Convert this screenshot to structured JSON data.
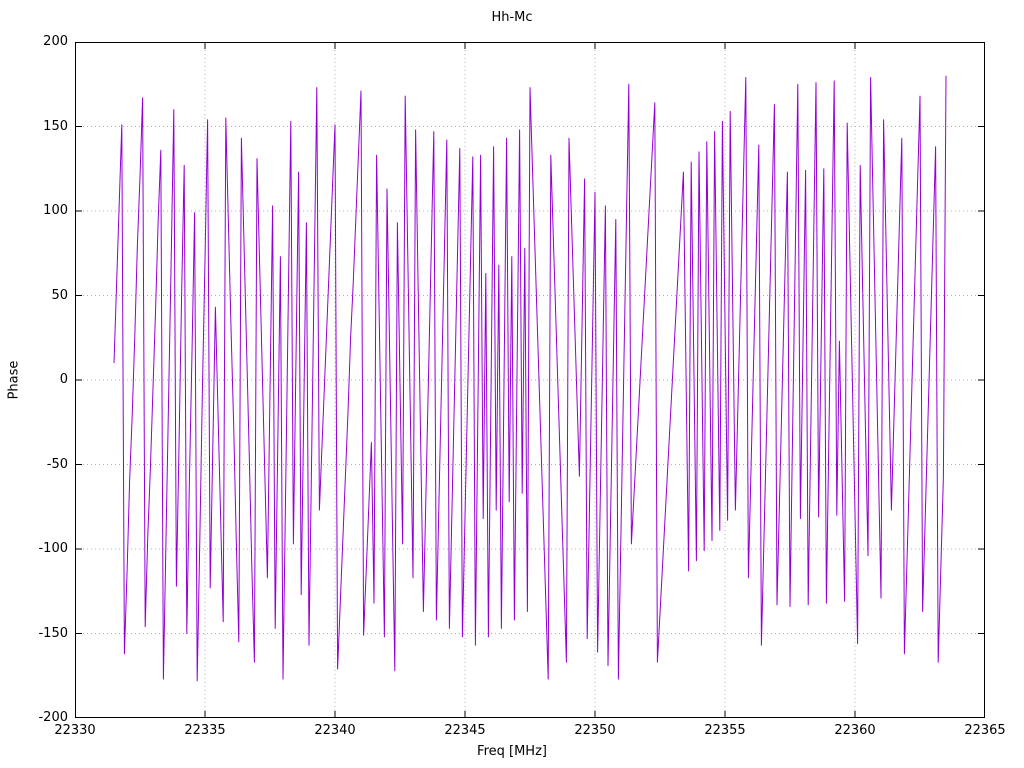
{
  "chart_data": {
    "type": "line",
    "title": "Hh-Mc",
    "xlabel": "Freq [MHz]",
    "ylabel": "Phase",
    "xlim": [
      22330,
      22365
    ],
    "ylim": [
      -200,
      200
    ],
    "xticks": [
      22330,
      22335,
      22340,
      22345,
      22350,
      22355,
      22360,
      22365
    ],
    "yticks": [
      -200,
      -150,
      -100,
      -50,
      0,
      50,
      100,
      150,
      200
    ],
    "grid": "dotted",
    "legend": "none",
    "line_color": "#9400D3",
    "grid_color": "#b0b0b0",
    "border_color": "#000000",
    "series": [
      {
        "name": "Hh-Mc phase",
        "x_start": 22331.5,
        "x_step": 0.1,
        "values": [
          10,
          57,
          104,
          151,
          -162,
          -115,
          -60,
          -21,
          26,
          80,
          120,
          167,
          -146,
          -92,
          -52,
          -5,
          42,
          95,
          136,
          -177,
          -94,
          -11,
          72,
          160,
          -122,
          -39,
          50,
          127,
          -150,
          -60,
          16,
          99,
          -178,
          -95,
          -6,
          71,
          154,
          -123,
          -40,
          43,
          -19,
          -81,
          -143,
          155,
          93,
          31,
          -25,
          -93,
          -155,
          143,
          81,
          19,
          -43,
          -110,
          -167,
          131,
          69,
          7,
          -55,
          -117,
          -7,
          103,
          -147,
          -37,
          73,
          -177,
          -67,
          43,
          153,
          -97,
          13,
          123,
          -127,
          -17,
          93,
          -157,
          -47,
          63,
          173,
          -77,
          -39,
          -1,
          37,
          75,
          113,
          151,
          -171,
          -133,
          -95,
          -57,
          -19,
          25,
          57,
          95,
          133,
          171,
          -151,
          -113,
          -75,
          -37,
          -132,
          133,
          38,
          -57,
          -152,
          113,
          18,
          -77,
          -172,
          93,
          -2,
          -97,
          168,
          73,
          -22,
          -117,
          148,
          53,
          -42,
          -137,
          -66,
          5,
          76,
          147,
          -142,
          -71,
          0,
          71,
          142,
          -147,
          -76,
          -5,
          66,
          137,
          -152,
          -81,
          -10,
          61,
          132,
          -157,
          -12,
          133,
          -82,
          63,
          -152,
          -7,
          138,
          -77,
          68,
          -147,
          -2,
          143,
          -72,
          73,
          -142,
          3,
          148,
          -67,
          78,
          -137,
          173,
          123,
          73,
          23,
          -27,
          -77,
          -127,
          -177,
          133,
          83,
          33,
          -17,
          -67,
          -117,
          -167,
          143,
          93,
          43,
          -7,
          -57,
          31,
          119,
          -153,
          -65,
          23,
          111,
          -161,
          -73,
          15,
          103,
          -169,
          -81,
          7,
          95,
          -177,
          -89,
          -1,
          87,
          175,
          -97,
          -68,
          -39,
          -10,
          19,
          48,
          77,
          106,
          135,
          164,
          -167,
          -138,
          -109,
          -80,
          -51,
          -22,
          7,
          36,
          65,
          94,
          123,
          5,
          -113,
          129,
          11,
          -107,
          135,
          17,
          -101,
          141,
          23,
          -95,
          147,
          29,
          -89,
          153,
          35,
          -83,
          159,
          41,
          -77,
          -13,
          51,
          115,
          179,
          -117,
          -53,
          11,
          75,
          139,
          -157,
          -93,
          -29,
          35,
          99,
          163,
          -133,
          -69,
          -5,
          59,
          123,
          -134,
          -31,
          72,
          175,
          -82,
          21,
          124,
          -133,
          -30,
          73,
          176,
          -81,
          22,
          125,
          -132,
          -29,
          74,
          177,
          -80,
          23,
          -54,
          -131,
          152,
          75,
          -2,
          -79,
          -156,
          127,
          50,
          -27,
          -104,
          179,
          102,
          25,
          -52,
          -129,
          154,
          77,
          0,
          -77,
          -22,
          33,
          88,
          143,
          -162,
          -107,
          -52,
          3,
          58,
          113,
          168,
          -137,
          -82,
          -27,
          28,
          83,
          138,
          -167,
          -112,
          -57,
          180
        ]
      }
    ]
  }
}
